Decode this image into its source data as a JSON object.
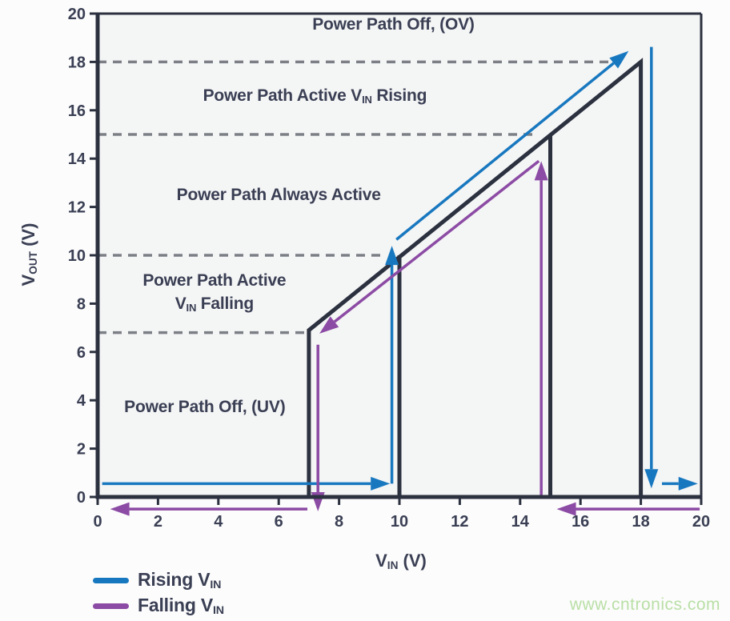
{
  "watermark": {
    "text": "www.cntronics.com",
    "color": "#b9dfa6"
  },
  "colors": {
    "text": "#3a3f54",
    "trace": "#2c3140",
    "grid_dash": "#7c8086",
    "plot_bg": "#f4f5f5",
    "page_bg": "#fcfcfc",
    "rising": "#1878bf",
    "falling": "#8c4ba4"
  },
  "chart_data": {
    "type": "line",
    "title": "",
    "xlabel": "V_IN_ (V)",
    "ylabel": "V_OUT_ (V)",
    "xlim": [
      0,
      20
    ],
    "ylim": [
      0,
      20
    ],
    "x_ticks": [
      0,
      2,
      4,
      6,
      8,
      10,
      12,
      14,
      16,
      18,
      20
    ],
    "y_ticks": [
      0,
      2,
      4,
      6,
      8,
      10,
      12,
      14,
      16,
      18,
      20
    ],
    "grid": "dashed horizontal threshold lines",
    "legend_position": "bottom-left",
    "reference_lines": [
      {
        "y": 18,
        "x_start": 0,
        "x_end": 17.15
      },
      {
        "y": 15,
        "x_start": 0,
        "x_end": 14.6
      },
      {
        "y": 10,
        "x_start": 0,
        "x_end": 9.45
      },
      {
        "y": 6.8,
        "x_start": 0,
        "x_end": 7.0
      }
    ],
    "envelope": {
      "name": "VOUT transfer envelope",
      "polylines": [
        [
          [
            7,
            0
          ],
          [
            7,
            6.9
          ],
          [
            18,
            18
          ],
          [
            18,
            0
          ]
        ],
        [
          [
            10,
            0
          ],
          [
            10,
            10
          ]
        ],
        [
          [
            15,
            0
          ],
          [
            15,
            15
          ]
        ],
        [
          [
            0,
            0
          ],
          [
            20,
            0
          ]
        ]
      ]
    },
    "series": [
      {
        "name": "Rising V_IN_",
        "key": "rising",
        "color": "#1878bf",
        "segments": [
          {
            "from": [
              0.15,
              0.55
            ],
            "to": [
              9.05,
              0.55
            ],
            "arrow": true
          },
          {
            "from": [
              9.75,
              0.55
            ],
            "to": [
              9.75,
              9.6
            ],
            "arrow": true
          },
          {
            "from": [
              9.9,
              10.65
            ],
            "to": [
              17.1,
              17.95
            ],
            "arrow": true
          },
          {
            "from": [
              18.35,
              18.62
            ],
            "to": [
              18.35,
              1.15
            ],
            "arrow": true
          },
          {
            "from": [
              18.7,
              0.55
            ],
            "to": [
              19.25,
              0.55
            ],
            "arrow": true
          }
        ]
      },
      {
        "name": "Falling V_IN_",
        "key": "falling",
        "color": "#8c4ba4",
        "segments": [
          {
            "from": [
              19.95,
              -0.5
            ],
            "to": [
              15.85,
              -0.5
            ],
            "arrow": true
          },
          {
            "from": [
              14.7,
              0
            ],
            "to": [
              14.7,
              13.1
            ],
            "arrow": true
          },
          {
            "from": [
              14.62,
              13.9
            ],
            "to": [
              7.85,
              7.25
            ],
            "arrow": true
          },
          {
            "from": [
              7.3,
              6.3
            ],
            "to": [
              7.3,
              0.2
            ],
            "arrow": true
          },
          {
            "from": [
              6.95,
              -0.5
            ],
            "to": [
              1.05,
              -0.5
            ],
            "arrow": true
          }
        ]
      }
    ],
    "annotations": [
      {
        "text": "Power Path Off, (OV)",
        "x": 9.8,
        "y": 19.55
      },
      {
        "text": "Power Path Active V_IN_ Rising",
        "x": 7.2,
        "y": 16.6
      },
      {
        "text": "Power Path Always Active",
        "x": 6.0,
        "y": 12.5
      },
      {
        "text": "Power Path Active",
        "x": 3.87,
        "y": 8.95
      },
      {
        "text": "V_IN_ Falling",
        "x": 3.87,
        "y": 7.97
      },
      {
        "text": "Power Path Off, (UV)",
        "x": 3.55,
        "y": 3.7
      }
    ],
    "legend": {
      "entries": [
        {
          "label": "Rising V_IN_",
          "color": "#1878bf"
        },
        {
          "label": "Falling V_IN_",
          "color": "#8c4ba4"
        }
      ]
    }
  }
}
